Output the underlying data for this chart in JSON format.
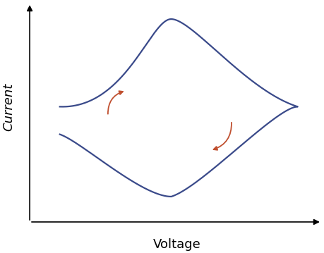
{
  "title": "",
  "xlabel": "Voltage",
  "ylabel": "Current",
  "xlabel_fontsize": 13,
  "ylabel_fontsize": 13,
  "ylabel_style": "italic",
  "curve_color": "#3a4a8a",
  "curve_linewidth": 1.6,
  "arrow_color": "#c05030",
  "background_color": "#ffffff",
  "figsize": [
    4.6,
    3.59
  ],
  "dpi": 100
}
